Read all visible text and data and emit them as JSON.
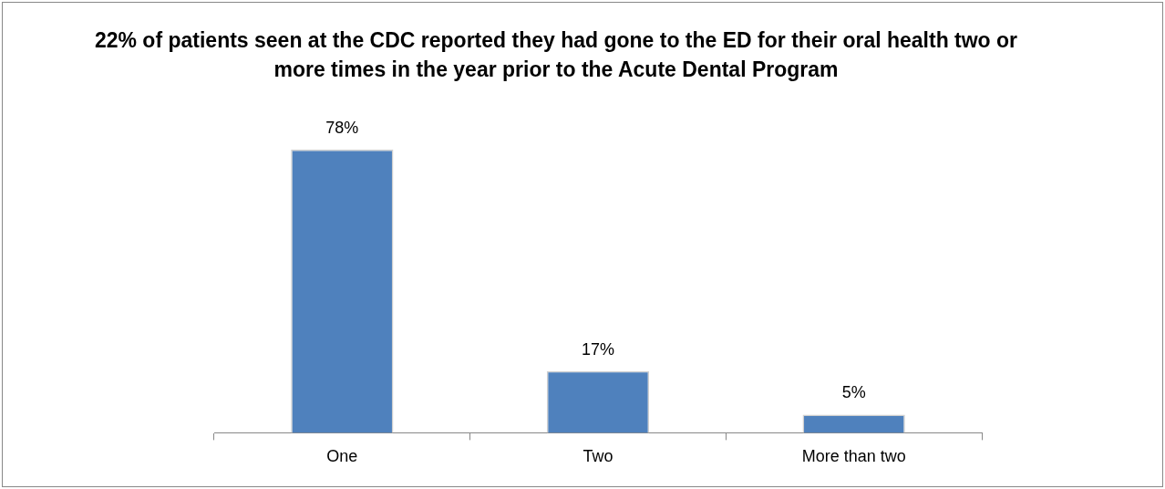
{
  "chart_data": {
    "type": "bar",
    "title": "22% of patients seen at the CDC reported they had gone to the ED for their oral health two or more times in the year prior to the Acute Dental Program",
    "categories": [
      "One",
      "Two",
      "More than two"
    ],
    "values": [
      78,
      17,
      5
    ],
    "value_labels": [
      "78%",
      "17%",
      "5%"
    ],
    "color": "#4f81bd",
    "grid": false,
    "legend": false
  }
}
